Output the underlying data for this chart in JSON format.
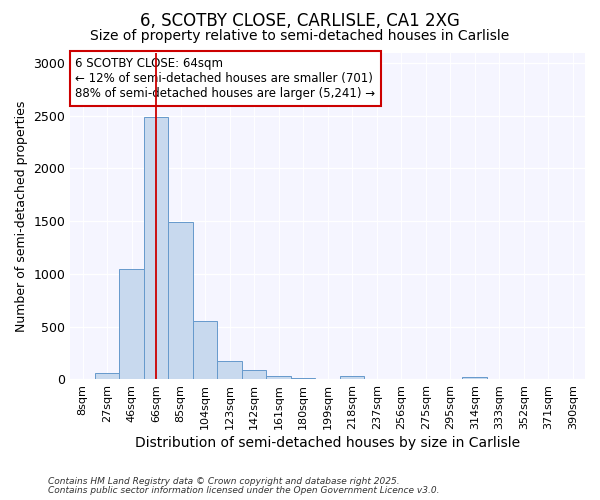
{
  "title": "6, SCOTBY CLOSE, CARLISLE, CA1 2XG",
  "subtitle": "Size of property relative to semi-detached houses in Carlisle",
  "xlabel": "Distribution of semi-detached houses by size in Carlisle",
  "ylabel": "Number of semi-detached properties",
  "categories": [
    "8sqm",
    "27sqm",
    "46sqm",
    "66sqm",
    "85sqm",
    "104sqm",
    "123sqm",
    "142sqm",
    "161sqm",
    "180sqm",
    "199sqm",
    "218sqm",
    "237sqm",
    "256sqm",
    "275sqm",
    "295sqm",
    "314sqm",
    "333sqm",
    "352sqm",
    "371sqm",
    "390sqm"
  ],
  "values": [
    0,
    55,
    1050,
    2490,
    1490,
    555,
    170,
    90,
    35,
    10,
    5,
    30,
    5,
    2,
    2,
    0,
    20,
    2,
    0,
    0,
    0
  ],
  "bar_color": "#c8d9ee",
  "bar_edge_color": "#6699cc",
  "red_line_index": 3,
  "annotation_line1": "6 SCOTBY CLOSE: 64sqm",
  "annotation_line2": "← 12% of semi-detached houses are smaller (701)",
  "annotation_line3": "88% of semi-detached houses are larger (5,241) →",
  "annotation_box_color": "#ffffff",
  "annotation_border_color": "#cc0000",
  "footnote1": "Contains HM Land Registry data © Crown copyright and database right 2025.",
  "footnote2": "Contains public sector information licensed under the Open Government Licence v3.0.",
  "ylim": [
    0,
    3100
  ],
  "yticks": [
    0,
    500,
    1000,
    1500,
    2000,
    2500,
    3000
  ],
  "bg_color": "#ffffff",
  "plot_bg_color": "#f5f5ff",
  "title_fontsize": 12,
  "subtitle_fontsize": 10,
  "tick_fontsize": 8,
  "ylabel_fontsize": 9,
  "xlabel_fontsize": 10
}
